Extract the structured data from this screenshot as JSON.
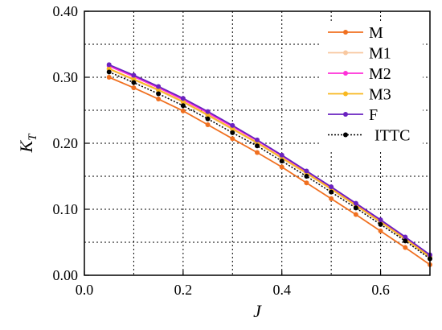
{
  "chart_data": {
    "type": "line",
    "xlabel": "J",
    "ylabel_main": "K",
    "ylabel_sub": "T",
    "xlim": [
      0.0,
      0.7
    ],
    "ylim": [
      0.0,
      0.4
    ],
    "x_ticks": [
      0.0,
      0.2,
      0.4,
      0.6
    ],
    "x_tick_labels": [
      "0.0",
      "0.2",
      "0.4",
      "0.6"
    ],
    "y_ticks": [
      0.0,
      0.1,
      0.2,
      0.3,
      0.4
    ],
    "y_tick_labels": [
      "0.00",
      "0.10",
      "0.20",
      "0.30",
      "0.40"
    ],
    "grid": true,
    "grid_style": "dotted",
    "x_gridlines": [
      0.1,
      0.2,
      0.3,
      0.4,
      0.5,
      0.6
    ],
    "y_gridlines": [
      0.05,
      0.1,
      0.15,
      0.2,
      0.25,
      0.3,
      0.35
    ],
    "legend_position": "top-right",
    "x": [
      0.05,
      0.1,
      0.15,
      0.2,
      0.25,
      0.3,
      0.35,
      0.4,
      0.45,
      0.5,
      0.55,
      0.6,
      0.65,
      0.7
    ],
    "series": [
      {
        "name": "M",
        "color": "#f07020",
        "style": "line-marker",
        "values": [
          0.3,
          0.284,
          0.267,
          0.249,
          0.228,
          0.207,
          0.186,
          0.164,
          0.14,
          0.116,
          0.092,
          0.067,
          0.042,
          0.016
        ]
      },
      {
        "name": "M1",
        "color": "#f8c8a0",
        "style": "line-marker",
        "values": [
          0.312,
          0.296,
          0.28,
          0.262,
          0.242,
          0.221,
          0.2,
          0.177,
          0.154,
          0.13,
          0.105,
          0.08,
          0.054,
          0.027
        ]
      },
      {
        "name": "M2",
        "color": "#ff30d8",
        "style": "line-marker",
        "values": [
          0.317,
          0.301,
          0.284,
          0.266,
          0.246,
          0.225,
          0.204,
          0.181,
          0.157,
          0.133,
          0.108,
          0.083,
          0.057,
          0.03
        ]
      },
      {
        "name": "M3",
        "color": "#f8b820",
        "style": "line-marker",
        "values": [
          0.313,
          0.297,
          0.281,
          0.263,
          0.243,
          0.222,
          0.201,
          0.178,
          0.155,
          0.131,
          0.106,
          0.081,
          0.055,
          0.028
        ]
      },
      {
        "name": "F",
        "color": "#6a22c0",
        "style": "line-marker",
        "values": [
          0.319,
          0.303,
          0.286,
          0.268,
          0.248,
          0.227,
          0.205,
          0.182,
          0.158,
          0.134,
          0.109,
          0.084,
          0.058,
          0.031
        ]
      },
      {
        "name": "ITTC",
        "color": "#000000",
        "style": "dotted-marker",
        "values": [
          0.308,
          0.292,
          0.275,
          0.257,
          0.237,
          0.216,
          0.196,
          0.173,
          0.15,
          0.126,
          0.102,
          0.077,
          0.052,
          0.025
        ]
      }
    ]
  }
}
